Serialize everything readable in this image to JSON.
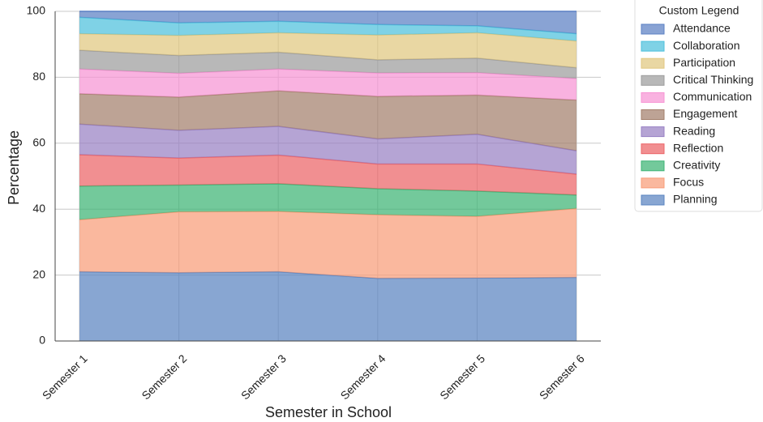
{
  "chart_data": {
    "type": "stacked_area",
    "x_label": "Semester in School",
    "y_label": "Percentage",
    "legend_title": "Custom Legend",
    "legend_position": "outside right",
    "categories": [
      "Semester 1",
      "Semester 2",
      "Semester 3",
      "Semester 4",
      "Semester 5",
      "Semester 6"
    ],
    "series": [
      {
        "name": "Planning",
        "color": "#5a84c0",
        "values": [
          21.0,
          20.7,
          21.0,
          19.0,
          19.1,
          19.3
        ]
      },
      {
        "name": "Focus",
        "color": "#f89c78",
        "values": [
          15.8,
          18.5,
          18.3,
          19.3,
          18.7,
          20.9
        ]
      },
      {
        "name": "Creativity",
        "color": "#3db475",
        "values": [
          10.2,
          8.1,
          8.4,
          7.9,
          7.7,
          4.1
        ]
      },
      {
        "name": "Reflection",
        "color": "#ec6467",
        "values": [
          9.5,
          8.2,
          8.7,
          7.5,
          8.2,
          6.3
        ]
      },
      {
        "name": "Reading",
        "color": "#9881c4",
        "values": [
          9.3,
          8.4,
          8.7,
          7.6,
          9.0,
          7.1
        ]
      },
      {
        "name": "Engagement",
        "color": "#a3806c",
        "values": [
          9.2,
          10.1,
          10.8,
          12.9,
          11.9,
          15.4
        ]
      },
      {
        "name": "Communication",
        "color": "#f794d4",
        "values": [
          7.5,
          7.2,
          6.6,
          7.1,
          6.8,
          6.5
        ]
      },
      {
        "name": "Critical Thinking",
        "color": "#9c9c9c",
        "values": [
          5.7,
          5.4,
          5.1,
          4.0,
          4.4,
          3.3
        ]
      },
      {
        "name": "Participation",
        "color": "#e1c780",
        "values": [
          5.0,
          6.1,
          5.9,
          7.5,
          7.7,
          8.1
        ]
      },
      {
        "name": "Collaboration",
        "color": "#4ec0dc",
        "values": [
          5.0,
          3.8,
          3.5,
          3.2,
          2.1,
          2.2
        ]
      },
      {
        "name": "Attendance",
        "color": "#5b80c4",
        "values": [
          1.8,
          3.5,
          3.0,
          4.0,
          4.4,
          6.8
        ]
      }
    ],
    "ylim": [
      0,
      100
    ],
    "yticks": [
      0,
      20,
      40,
      60,
      80,
      100
    ],
    "grid": true
  }
}
